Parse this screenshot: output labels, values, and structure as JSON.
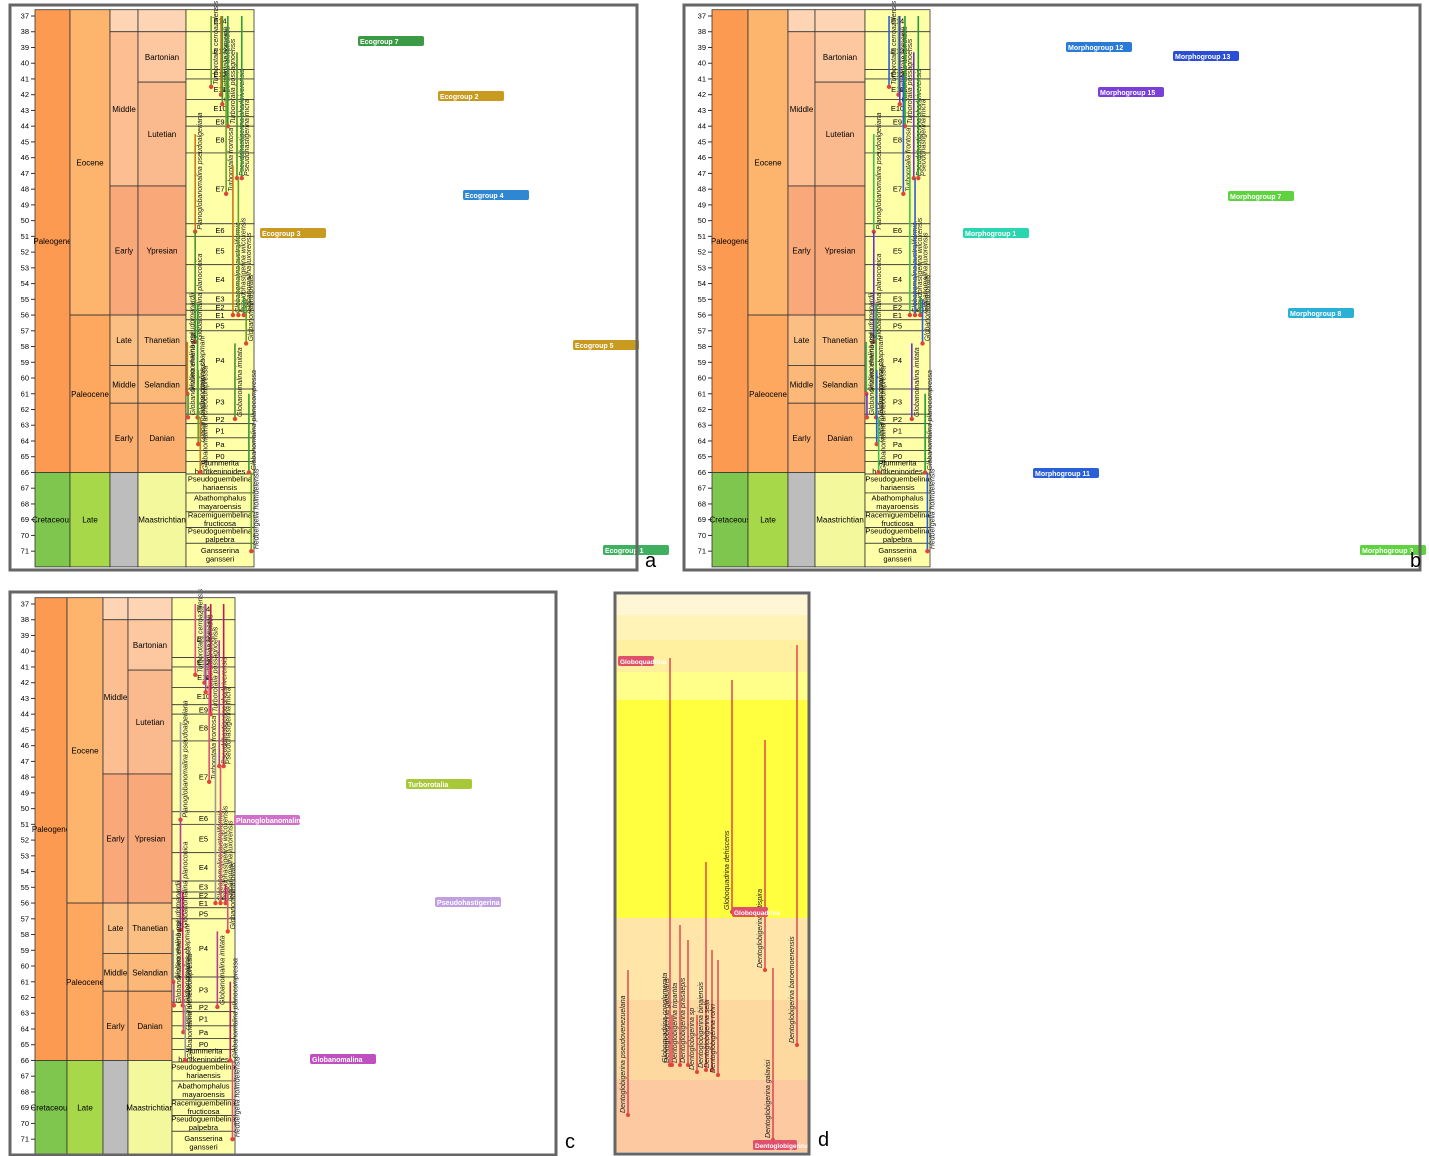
{
  "timescale": {
    "age_ticks": [
      37,
      38,
      39,
      40,
      41,
      42,
      43,
      44,
      45,
      46,
      47,
      48,
      49,
      50,
      51,
      52,
      53,
      54,
      55,
      56,
      57,
      58,
      59,
      60,
      61,
      62,
      63,
      64,
      65,
      66,
      67,
      68,
      69,
      70,
      71
    ],
    "periods": [
      {
        "name": "Paleogene",
        "top": 36.6,
        "base": 66
      },
      {
        "name": "Cretaceous",
        "top": 66,
        "base": 72
      }
    ],
    "epochs": [
      {
        "name": "Eocene",
        "top": 36.6,
        "base": 56
      },
      {
        "name": "Paleocene",
        "top": 56,
        "base": 66
      },
      {
        "name": "Late",
        "top": 66,
        "base": 72
      }
    ],
    "subepochs": [
      {
        "name": null,
        "top": 36.6,
        "base": 38
      },
      {
        "name": "Middle",
        "top": 38,
        "base": 47.8
      },
      {
        "name": "Early",
        "top": 47.8,
        "base": 56
      },
      {
        "name": "Late",
        "top": 56,
        "base": 59.2
      },
      {
        "name": "Middle",
        "top": 59.2,
        "base": 61.6
      },
      {
        "name": "Early",
        "top": 61.6,
        "base": 66
      },
      {
        "name": null,
        "top": 66,
        "base": 72
      }
    ],
    "stages": [
      {
        "name": null,
        "top": 36.6,
        "base": 38
      },
      {
        "name": "Bartonian",
        "top": 38,
        "base": 41.2
      },
      {
        "name": "Lutetian",
        "top": 41.2,
        "base": 47.8
      },
      {
        "name": "Ypresian",
        "top": 47.8,
        "base": 56
      },
      {
        "name": "Thanetian",
        "top": 56,
        "base": 59.2
      },
      {
        "name": "Selandian",
        "top": 59.2,
        "base": 61.6
      },
      {
        "name": "Danian",
        "top": 61.6,
        "base": 66
      },
      {
        "name": "Maastrichtian",
        "top": 66,
        "base": 72
      }
    ],
    "zones": [
      {
        "name": "E14",
        "top": 36.6,
        "base": 38
      },
      {
        "name": "E13",
        "top": 38,
        "base": 40.4
      },
      {
        "name": "E12",
        "top": 40.4,
        "base": 41
      },
      {
        "name": "E11",
        "top": 41,
        "base": 42.3
      },
      {
        "name": "E10",
        "top": 42.3,
        "base": 43.4
      },
      {
        "name": "E9",
        "top": 43.4,
        "base": 44
      },
      {
        "name": "E8",
        "top": 44,
        "base": 45.7
      },
      {
        "name": "E7",
        "top": 45.7,
        "base": 50.2
      },
      {
        "name": "E6",
        "top": 50.2,
        "base": 51
      },
      {
        "name": "E5",
        "top": 51,
        "base": 52.8
      },
      {
        "name": "E4",
        "top": 52.8,
        "base": 54.6
      },
      {
        "name": "E3",
        "top": 54.6,
        "base": 55.3
      },
      {
        "name": "E2",
        "top": 55.3,
        "base": 55.7
      },
      {
        "name": "E1",
        "top": 55.7,
        "base": 56.3
      },
      {
        "name": "P5",
        "top": 56.3,
        "base": 57
      },
      {
        "name": "P4",
        "top": 57,
        "base": 60.7
      },
      {
        "name": "P3",
        "top": 60.7,
        "base": 62.3
      },
      {
        "name": "P2",
        "top": 62.3,
        "base": 62.9
      },
      {
        "name": "P1",
        "top": 62.9,
        "base": 63.8
      },
      {
        "name": "Pa",
        "top": 63.8,
        "base": 64.6
      },
      {
        "name": "P0",
        "top": 64.6,
        "base": 65.3
      },
      {
        "name": "Plummerita hantkeninoides",
        "top": 65.3,
        "base": 66.1
      },
      {
        "name": "Pseudoguembelina hariaensis",
        "top": 66.1,
        "base": 67.3
      },
      {
        "name": "Abathomphalus mayaroensis",
        "top": 67.3,
        "base": 68.5
      },
      {
        "name": "Racemiguembelina fructicosa",
        "top": 68.5,
        "base": 69.5
      },
      {
        "name": "Pseudoguembelina palpebra",
        "top": 69.5,
        "base": 70.5
      },
      {
        "name": "Gansserina gansseri",
        "top": 70.5,
        "base": 72
      }
    ]
  },
  "species": [
    {
      "name": "Turborotalia cerroazulensis",
      "top": 37,
      "base": 41.5
    },
    {
      "name": "Turborotalia pomeroli",
      "top": 37,
      "base": 42
    },
    {
      "name": "Turborotalia altispiroides",
      "top": 37,
      "base": 42.6
    },
    {
      "name": "Turborotalia possagnoensis",
      "top": 37,
      "base": 44
    },
    {
      "name": "Turborotalia frontosa",
      "top": 40.8,
      "base": 48.3
    },
    {
      "name": "Globanomalina australiformis",
      "top": 46.5,
      "base": 56
    },
    {
      "name": "Pseudohastigerina sharkriverensis",
      "top": 39.3,
      "base": 47.3
    },
    {
      "name": "Pseudohastigerina micra",
      "top": 37,
      "base": 47.3
    },
    {
      "name": "Pseudohastigerina wilcoxensis",
      "top": 47.3,
      "base": 56
    },
    {
      "name": "Planoglobanomalina pseudoalgeriana",
      "top": 44.5,
      "base": 50.7
    },
    {
      "name": "Globanomalina planoconica",
      "top": 50.7,
      "base": 57.7
    },
    {
      "name": "Globanomalina luxorensis",
      "top": 54.8,
      "base": 56
    },
    {
      "name": "Globanomalina ovalis",
      "top": 55,
      "base": 57.8
    },
    {
      "name": "Globanomalina pseudomenardii",
      "top": 57.7,
      "base": 61
    },
    {
      "name": "Globanomalina ehrenbergi",
      "top": 61,
      "base": 62.5
    },
    {
      "name": "Globanomalina chapmani",
      "top": 55.3,
      "base": 62.5
    },
    {
      "name": "Globanomalina compressa",
      "top": 59.5,
      "base": 64.2
    },
    {
      "name": "Globanomalina archeocompressa",
      "top": 62.5,
      "base": 66
    },
    {
      "name": "Globanomalina imitata",
      "top": 57.8,
      "base": 62.6
    },
    {
      "name": "Globanomalina planocompressa",
      "top": 61,
      "base": 66
    },
    {
      "name": "Hedbergella holmdelensis",
      "top": 66,
      "base": 71
    }
  ],
  "panels": {
    "a": {
      "letter": "a",
      "groups": [
        "Ecogroup 7",
        "Ecogroup 2",
        "Ecogroup 4",
        "Ecogroup 3",
        "Ecogroup 5",
        "Ecogroup 1"
      ]
    },
    "b": {
      "letter": "b",
      "groups": [
        "Morphogroup 12",
        "Morphogroup 13",
        "Morphogroup 15",
        "Morphogroup 7",
        "Morphogroup 1",
        "Morphogroup 8",
        "Morphogroup 11",
        "Morphogroup 3"
      ]
    },
    "c": {
      "letter": "c",
      "groups": [
        "Turborotalia",
        "Planoglobanomalina",
        "Pseudohastigerina",
        "Globanomalina"
      ]
    },
    "d": {
      "letter": "d",
      "groups": [
        "Globoquadrina",
        "Globoquadrina",
        "Dentoglobigerina"
      ],
      "species": [
        "Globoquadrina conglomerata",
        "Dentoglobigerina pseudovenezuelana",
        "Dentoglobigerina tripartita",
        "Dentoglobigerina globularis",
        "Dentoglobigerina prasaepis",
        "Dentoglobigerina sp",
        "Dentoglobigerina binaiensis",
        "Dentoglobigerina sellii",
        "Dentoglobigerina rohri",
        "Globoquadrina dehiscens",
        "Dentoglobigerina altispira",
        "Dentoglobigerina galavisi",
        "Dentoglobigerina baroemoenensis"
      ]
    }
  }
}
